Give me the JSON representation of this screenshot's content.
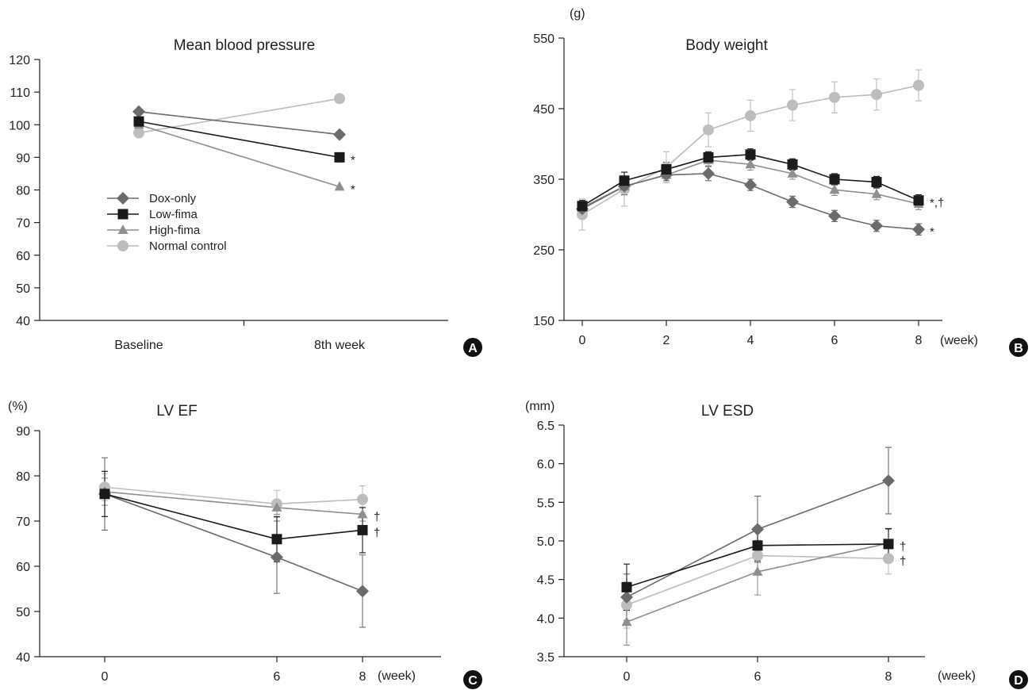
{
  "colors": {
    "Dox-only": "#6b6b6b",
    "Low-fima": "#1a1a1a",
    "High-fima": "#8f8f8f",
    "Normal control": "#bdbdbd"
  },
  "chart_data": [
    {
      "panel": "A",
      "type": "line",
      "title": "Mean blood pressure",
      "unit": "",
      "x_unit": "",
      "categories": [
        "Baseline",
        "8th week"
      ],
      "ylim": [
        40,
        120
      ],
      "yticks": [
        40,
        50,
        60,
        70,
        80,
        90,
        100,
        110,
        120
      ],
      "legend": [
        "Dox-only",
        "Low-fima",
        "High-fima",
        "Normal control"
      ],
      "legend_position": "left",
      "series": [
        {
          "name": "Dox-only",
          "marker": "diamond",
          "values": [
            104,
            97
          ],
          "annotation": ""
        },
        {
          "name": "Low-fima",
          "marker": "square",
          "values": [
            101,
            90
          ],
          "annotation": "*"
        },
        {
          "name": "High-fima",
          "marker": "triangle",
          "values": [
            100,
            81
          ],
          "annotation": "*"
        },
        {
          "name": "Normal control",
          "marker": "circle",
          "values": [
            97.5,
            108
          ],
          "annotation": ""
        }
      ]
    },
    {
      "panel": "B",
      "type": "line",
      "title": "Body weight",
      "unit": "(g)",
      "x_unit": "(week)",
      "x": [
        0,
        1,
        2,
        3,
        4,
        5,
        6,
        7,
        8
      ],
      "xticks": [
        0,
        2,
        4,
        6,
        8
      ],
      "xlim": [
        -0.5,
        8.8
      ],
      "ylim": [
        150,
        550
      ],
      "yticks": [
        150,
        250,
        350,
        450,
        550
      ],
      "series": [
        {
          "name": "Dox-only",
          "marker": "diamond",
          "values": [
            308,
            340,
            356,
            358,
            342,
            318,
            298,
            284,
            279
          ],
          "err": [
            8,
            12,
            8,
            10,
            8,
            8,
            8,
            8,
            8
          ],
          "annotation": "*"
        },
        {
          "name": "Low-fima",
          "marker": "square",
          "values": [
            312,
            348,
            364,
            381,
            385,
            371,
            350,
            346,
            320
          ],
          "err": [
            8,
            12,
            10,
            8,
            8,
            8,
            8,
            8,
            8
          ],
          "annotation": "*,†"
        },
        {
          "name": "High-fima",
          "marker": "triangle",
          "values": [
            310,
            340,
            356,
            377,
            371,
            358,
            335,
            329,
            315
          ],
          "err": [
            8,
            12,
            8,
            8,
            8,
            8,
            8,
            8,
            8
          ],
          "annotation": ""
        },
        {
          "name": "Normal control",
          "marker": "circle",
          "values": [
            300,
            336,
            367,
            420,
            440,
            455,
            466,
            470,
            483
          ],
          "err": [
            22,
            24,
            22,
            24,
            22,
            22,
            22,
            22,
            22
          ],
          "annotation": ""
        }
      ]
    },
    {
      "panel": "C",
      "type": "line",
      "title": "LV EF",
      "unit": "(%)",
      "x_unit": "(week)",
      "x": [
        0,
        6,
        8
      ],
      "xticks": [
        0,
        6,
        8
      ],
      "xlim": [
        -1.7,
        9.9
      ],
      "ylim": [
        40,
        90
      ],
      "yticks": [
        40,
        50,
        60,
        70,
        80,
        90
      ],
      "series": [
        {
          "name": "Dox-only",
          "marker": "diamond",
          "values": [
            76,
            62,
            54.5
          ],
          "err": [
            8,
            8,
            8
          ],
          "annotation": ""
        },
        {
          "name": "Low-fima",
          "marker": "square",
          "values": [
            76,
            66,
            68
          ],
          "err": [
            5,
            5,
            5
          ],
          "annotation": "†"
        },
        {
          "name": "High-fima",
          "marker": "triangle",
          "values": [
            76.5,
            73,
            71.5
          ],
          "err": [
            3,
            1.5,
            1.5
          ],
          "annotation": "†"
        },
        {
          "name": "Normal control",
          "marker": "circle",
          "values": [
            77.5,
            73.8,
            74.8
          ],
          "err": [
            3,
            3,
            3
          ],
          "annotation": ""
        }
      ]
    },
    {
      "panel": "D",
      "type": "line",
      "title": "LV ESD",
      "unit": "(mm)",
      "x_unit": "(week)",
      "x": [
        0,
        6,
        8
      ],
      "xticks": [
        0,
        6,
        8
      ],
      "xlim": [
        -1.7,
        9.9
      ],
      "ylim": [
        3.5,
        6.5
      ],
      "yticks": [
        3.5,
        4.0,
        4.5,
        5.0,
        5.5,
        6.0,
        6.5
      ],
      "series": [
        {
          "name": "Dox-only",
          "marker": "diamond",
          "values": [
            4.27,
            5.15,
            5.78
          ],
          "err": [
            0.3,
            0.43,
            0.43
          ],
          "annotation": ""
        },
        {
          "name": "Low-fima",
          "marker": "square",
          "values": [
            4.4,
            4.94,
            4.96
          ],
          "err": [
            0.3,
            0.2,
            0.2
          ],
          "annotation": "†"
        },
        {
          "name": "High-fima",
          "marker": "triangle",
          "values": [
            3.95,
            4.6,
            4.97
          ],
          "err": [
            0.3,
            0.3,
            0.18
          ],
          "annotation": ""
        },
        {
          "name": "Normal control",
          "marker": "circle",
          "values": [
            4.17,
            4.81,
            4.77
          ],
          "err": [
            0.3,
            0.2,
            0.2
          ],
          "annotation": "†"
        }
      ]
    }
  ]
}
